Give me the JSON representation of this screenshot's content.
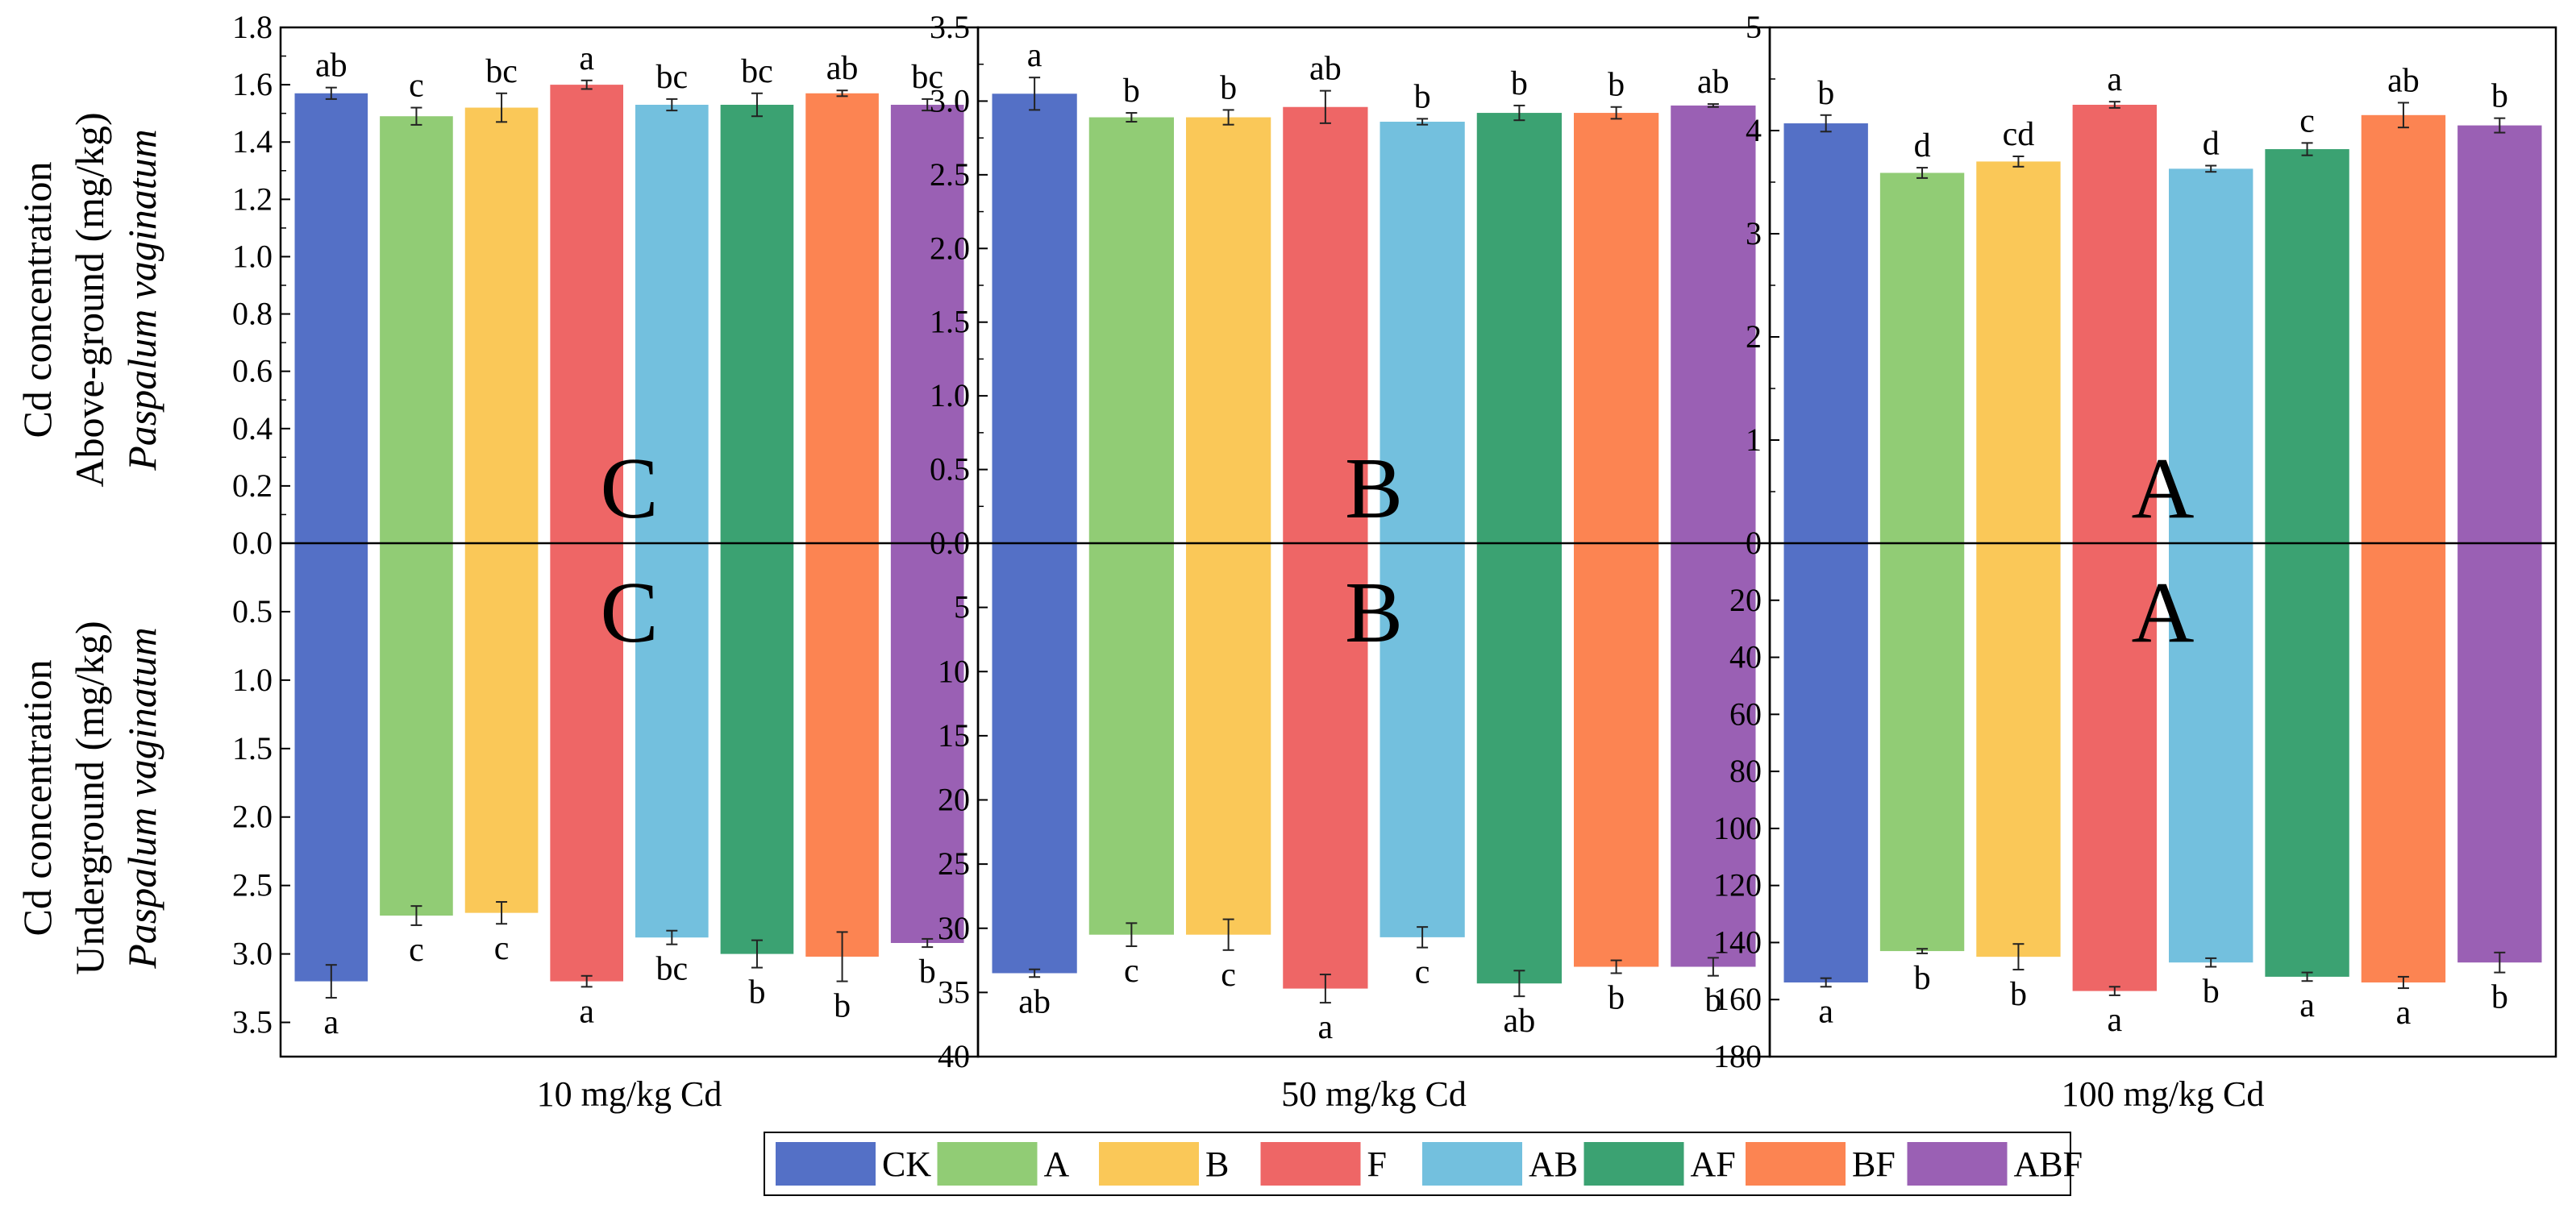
{
  "chart_data": {
    "type": "bar",
    "treatments": [
      "CK",
      "A",
      "B",
      "F",
      "AB",
      "AF",
      "BF",
      "ABF"
    ],
    "colors": [
      "#5470C6",
      "#91CC75",
      "#FAC858",
      "#EE6666",
      "#73C0DE",
      "#3BA272",
      "#FC8452",
      "#9A60B4"
    ],
    "y_axis_labels": {
      "top": {
        "line1": "Cd concentration",
        "line2": "Above-ground (mg/kg)",
        "line3": "Paspalum vaginatum"
      },
      "bottom": {
        "line1": "Cd concentration",
        "line2": "Underground (mg/kg)",
        "line3": "Paspalum vaginatum"
      }
    },
    "panels": [
      {
        "xlabel": "10 mg/kg Cd",
        "top": {
          "ylim": [
            0,
            1.8
          ],
          "ticks": [
            "0.0",
            "0.2",
            "0.4",
            "0.6",
            "0.8",
            "1.0",
            "1.2",
            "1.4",
            "1.6",
            "1.8"
          ],
          "values": [
            1.57,
            1.49,
            1.52,
            1.6,
            1.53,
            1.53,
            1.57,
            1.53
          ],
          "errors": [
            0.02,
            0.03,
            0.05,
            0.015,
            0.02,
            0.04,
            0.01,
            0.02
          ],
          "letters": [
            "ab",
            "c",
            "bc",
            "a",
            "bc",
            "bc",
            "ab",
            "bc"
          ],
          "group_letter": "C"
        },
        "bottom": {
          "ylim": [
            0,
            3.75
          ],
          "ticks": [
            "0.0",
            "0.5",
            "1.0",
            "1.5",
            "2.0",
            "2.5",
            "3.0",
            "3.5"
          ],
          "values": [
            3.2,
            2.72,
            2.7,
            3.2,
            2.88,
            3.0,
            3.02,
            2.92
          ],
          "errors": [
            0.12,
            0.07,
            0.08,
            0.04,
            0.05,
            0.1,
            0.18,
            0.03
          ],
          "letters": [
            "a",
            "c",
            "c",
            "a",
            "bc",
            "b",
            "b",
            "b"
          ],
          "group_letter": "C"
        }
      },
      {
        "xlabel": "50 mg/kg Cd",
        "top": {
          "ylim": [
            0,
            3.5
          ],
          "ticks": [
            "0.0",
            "0.5",
            "1.0",
            "1.5",
            "2.0",
            "2.5",
            "3.0",
            "3.5"
          ],
          "values": [
            3.05,
            2.89,
            2.89,
            2.96,
            2.86,
            2.92,
            2.92,
            2.97
          ],
          "errors": [
            0.11,
            0.03,
            0.05,
            0.11,
            0.02,
            0.05,
            0.04,
            0.01
          ],
          "letters": [
            "a",
            "b",
            "b",
            "ab",
            "b",
            "b",
            "b",
            "ab"
          ],
          "group_letter": "B"
        },
        "bottom": {
          "ylim": [
            0,
            40
          ],
          "ticks": [
            "0.0",
            "5",
            "10",
            "15",
            "20",
            "25",
            "30",
            "35",
            "40"
          ],
          "values": [
            33.5,
            30.5,
            30.5,
            34.7,
            30.7,
            34.3,
            33.0,
            33.0
          ],
          "errors": [
            0.3,
            0.9,
            1.2,
            1.1,
            0.8,
            1.0,
            0.5,
            0.7
          ],
          "letters": [
            "ab",
            "c",
            "c",
            "a",
            "c",
            "ab",
            "b",
            "b"
          ],
          "group_letter": "B"
        }
      },
      {
        "xlabel": "100 mg/kg Cd",
        "top": {
          "ylim": [
            0,
            5
          ],
          "ticks": [
            "0",
            "1",
            "2",
            "3",
            "4",
            "5"
          ],
          "values": [
            4.07,
            3.59,
            3.7,
            4.25,
            3.63,
            3.82,
            4.15,
            4.05
          ],
          "errors": [
            0.08,
            0.05,
            0.05,
            0.03,
            0.03,
            0.06,
            0.12,
            0.07
          ],
          "letters": [
            "b",
            "d",
            "cd",
            "a",
            "d",
            "c",
            "ab",
            "b"
          ],
          "group_letter": "A"
        },
        "bottom": {
          "ylim": [
            0,
            180
          ],
          "ticks": [
            "0",
            "20",
            "40",
            "60",
            "80",
            "100",
            "120",
            "140",
            "160",
            "180"
          ],
          "values": [
            154,
            143,
            145,
            157,
            147,
            152,
            154,
            147
          ],
          "errors": [
            1.5,
            0.8,
            4.5,
            1.5,
            1.5,
            1.5,
            2.0,
            3.5
          ],
          "letters": [
            "a",
            "b",
            "b",
            "a",
            "b",
            "a",
            "a",
            "b"
          ],
          "group_letter": "A"
        }
      }
    ],
    "legend": [
      "CK",
      "A",
      "B",
      "F",
      "AB",
      "AF",
      "BF",
      "ABF"
    ],
    "legend_position": "bottom-center"
  }
}
